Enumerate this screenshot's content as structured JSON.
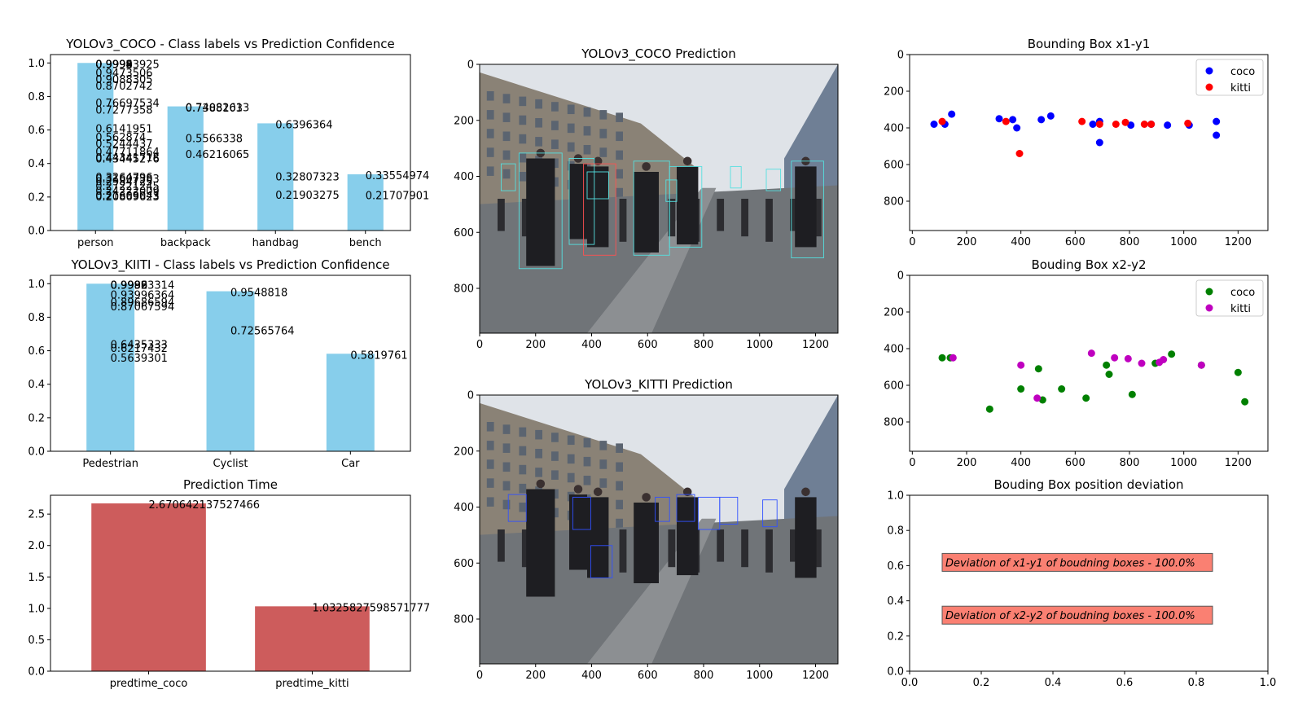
{
  "chart_data": [
    {
      "id": "coco-conf",
      "type": "bar",
      "title": "YOLOv3_COCO - Class labels vs Prediction Confidence",
      "categories": [
        "person",
        "backpack",
        "handbag",
        "bench"
      ],
      "values": [
        1.0,
        0.74082613,
        0.6396364,
        0.33554974
      ],
      "annotations": [
        {
          "x": "person",
          "labels": [
            "0.99993925",
            "0.9999",
            "0.9998",
            "0.9996",
            "0.9994",
            "0.9992",
            "0.9473506",
            "0.9088305",
            "0.8702742",
            "0.76697534",
            "0.7277358",
            "0.6141951",
            "0.562874",
            "0.5244437",
            "0.47711864",
            "0.44341718",
            "0.43445276",
            "0.3264796",
            "0.31607383",
            "0.2984725",
            "0.27221245",
            "0.24222009",
            "0.21609043",
            "0.20869623"
          ]
        },
        {
          "x": "backpack",
          "labels": [
            "0.74082613",
            "0.7388103",
            "0.5566338",
            "0.46216065"
          ]
        },
        {
          "x": "handbag",
          "labels": [
            "0.6396364",
            "0.32807323",
            "0.21903275"
          ]
        },
        {
          "x": "bench",
          "labels": [
            "0.33554974",
            "0.21707901"
          ]
        }
      ],
      "ylim": [
        0,
        1.05
      ],
      "yticks": [
        "0.0",
        "0.2",
        "0.4",
        "0.6",
        "0.8",
        "1.0"
      ],
      "colors": {
        "bar": "#87ceeb"
      }
    },
    {
      "id": "kitti-conf",
      "type": "bar",
      "title": "YOLOv3_KIITI - Class labels vs Prediction Confidence",
      "categories": [
        "Pedestrian",
        "Cyclist",
        "Car"
      ],
      "values": [
        1.0,
        0.9548818,
        0.5819761
      ],
      "annotations": [
        {
          "x": "Pedestrian",
          "labels": [
            "0.99993314",
            "0.9996",
            "0.9992",
            "0.9988",
            "0.93996364",
            "0.89686594",
            "0.87067594",
            "0.6435333",
            "0.6217432",
            "0.5639301"
          ]
        },
        {
          "x": "Cyclist",
          "labels": [
            "0.9548818",
            "0.72565764"
          ]
        },
        {
          "x": "Car",
          "labels": [
            "0.5819761"
          ]
        }
      ],
      "ylim": [
        0,
        1.05
      ],
      "yticks": [
        "0.0",
        "0.2",
        "0.4",
        "0.6",
        "0.8",
        "1.0"
      ],
      "colors": {
        "bar": "#87ceeb"
      }
    },
    {
      "id": "pred-time",
      "type": "bar",
      "title": "Prediction Time",
      "categories": [
        "predtime_coco",
        "predtime_kitti"
      ],
      "values": [
        2.670642137527466,
        1.0325827598571777
      ],
      "annotations": [
        {
          "x": "predtime_coco",
          "labels": [
            "2.670642137527466"
          ]
        },
        {
          "x": "predtime_kitti",
          "labels": [
            "1.0325827598571777"
          ]
        }
      ],
      "ylim": [
        0,
        2.8
      ],
      "yticks": [
        "0.0",
        "0.5",
        "1.0",
        "1.5",
        "2.0",
        "2.5"
      ],
      "colors": {
        "bar": "#cd5c5c"
      }
    },
    {
      "id": "coco-image",
      "type": "image",
      "title": "YOLOv3_COCO Prediction",
      "xticks": [
        "0",
        "200",
        "400",
        "600",
        "800",
        "1000",
        "1200"
      ],
      "yticks": [
        "0",
        "200",
        "400",
        "600",
        "800"
      ],
      "xlim": [
        0,
        1280
      ],
      "ylim": [
        960,
        0
      ]
    },
    {
      "id": "kitti-image",
      "type": "image",
      "title": "YOLOv3_KITTI Prediction",
      "xticks": [
        "0",
        "200",
        "400",
        "600",
        "800",
        "1000",
        "1200"
      ],
      "yticks": [
        "0",
        "200",
        "400",
        "600",
        "800"
      ],
      "xlim": [
        0,
        1280
      ],
      "ylim": [
        960,
        0
      ]
    },
    {
      "id": "bbox-x1y1",
      "type": "scatter",
      "title": "Bounding Box x1-y1",
      "xticks": [
        "0",
        "200",
        "400",
        "600",
        "800",
        "1000",
        "1200"
      ],
      "yticks": [
        "0",
        "200",
        "400",
        "600",
        "800"
      ],
      "xlim": [
        -10,
        1310
      ],
      "ylim": [
        960,
        0
      ],
      "legend_position": "top-right",
      "series": [
        {
          "name": "coco",
          "color": "#0000ff",
          "points": [
            [
              80,
              380
            ],
            [
              120,
              380
            ],
            [
              145,
              325
            ],
            [
              320,
              350
            ],
            [
              370,
              355
            ],
            [
              385,
              400
            ],
            [
              475,
              355
            ],
            [
              510,
              335
            ],
            [
              690,
              480
            ],
            [
              690,
              365
            ],
            [
              665,
              380
            ],
            [
              805,
              385
            ],
            [
              880,
              380
            ],
            [
              940,
              385
            ],
            [
              1020,
              385
            ],
            [
              1120,
              365
            ],
            [
              1120,
              440
            ]
          ]
        },
        {
          "name": "kitti",
          "color": "#ff0000",
          "points": [
            [
              110,
              365
            ],
            [
              345,
              365
            ],
            [
              395,
              540
            ],
            [
              625,
              365
            ],
            [
              690,
              380
            ],
            [
              750,
              380
            ],
            [
              785,
              370
            ],
            [
              855,
              380
            ],
            [
              880,
              380
            ],
            [
              1015,
              375
            ]
          ]
        }
      ]
    },
    {
      "id": "bbox-x2y2",
      "type": "scatter",
      "title": "Bouding Box x2-y2",
      "xticks": [
        "0",
        "200",
        "400",
        "600",
        "800",
        "1000",
        "1200"
      ],
      "yticks": [
        "0",
        "200",
        "400",
        "600",
        "800"
      ],
      "xlim": [
        -10,
        1310
      ],
      "ylim": [
        960,
        0
      ],
      "legend_position": "top-right",
      "series": [
        {
          "name": "coco",
          "color": "#008000",
          "points": [
            [
              110,
              450
            ],
            [
              140,
              450
            ],
            [
              285,
              730
            ],
            [
              400,
              620
            ],
            [
              480,
              680
            ],
            [
              465,
              510
            ],
            [
              550,
              620
            ],
            [
              640,
              670
            ],
            [
              715,
              490
            ],
            [
              725,
              540
            ],
            [
              810,
              650
            ],
            [
              895,
              480
            ],
            [
              955,
              430
            ],
            [
              1065,
              490
            ],
            [
              1200,
              530
            ],
            [
              1225,
              690
            ]
          ]
        },
        {
          "name": "kitti",
          "color": "#bf00bf",
          "points": [
            [
              150,
              450
            ],
            [
              400,
              490
            ],
            [
              460,
              670
            ],
            [
              660,
              425
            ],
            [
              745,
              450
            ],
            [
              795,
              455
            ],
            [
              845,
              480
            ],
            [
              910,
              475
            ],
            [
              925,
              460
            ],
            [
              1065,
              490
            ]
          ]
        }
      ]
    },
    {
      "id": "deviation",
      "type": "text",
      "title": "Bouding Box position deviation",
      "xticks": [
        "0.0",
        "0.2",
        "0.4",
        "0.6",
        "0.8",
        "1.0"
      ],
      "yticks": [
        "0.0",
        "0.2",
        "0.4",
        "0.6",
        "0.8",
        "1.0"
      ],
      "xlim": [
        0,
        1
      ],
      "ylim": [
        0,
        1
      ],
      "boxes": [
        {
          "text": "Deviation of x1-y1 of boudning boxes - 100.0%",
          "x": 0.1,
          "y": 0.6
        },
        {
          "text": "Deviation of x2-y2 of boudning boxes - 100.0%",
          "x": 0.1,
          "y": 0.3
        }
      ],
      "colors": {
        "box": "#fa8072"
      }
    }
  ]
}
